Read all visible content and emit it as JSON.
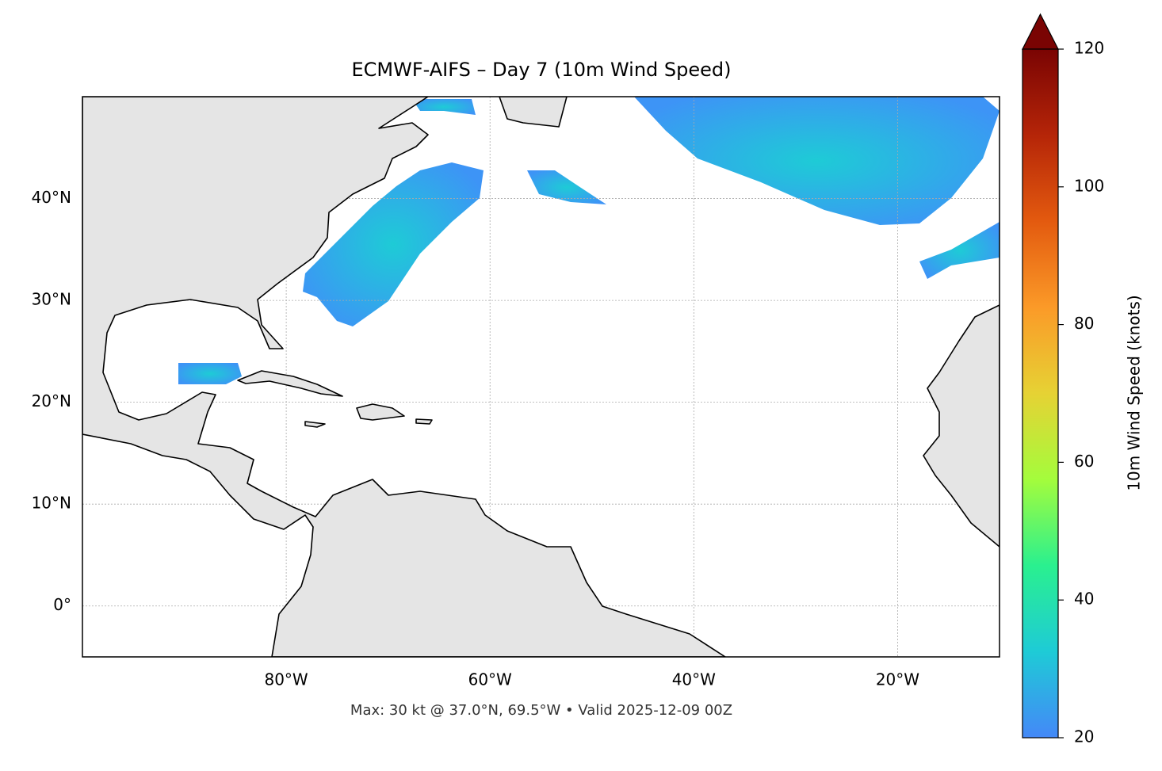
{
  "chart_data": {
    "type": "map",
    "title": "ECMWF-AIFS – Day 7 (10m Wind Speed)",
    "footnote": "Max: 30 kt @ 37.0°N, 69.5°W • Valid 2025-12-09 00Z",
    "xlim": [
      -100,
      -10
    ],
    "ylim": [
      -5,
      50
    ],
    "xticks": [
      {
        "value": -80,
        "label": "80°W"
      },
      {
        "value": -60,
        "label": "60°W"
      },
      {
        "value": -40,
        "label": "40°W"
      },
      {
        "value": -20,
        "label": "20°W"
      }
    ],
    "yticks": [
      {
        "value": 0,
        "label": "0°"
      },
      {
        "value": 10,
        "label": "10°N"
      },
      {
        "value": 20,
        "label": "20°N"
      },
      {
        "value": 30,
        "label": "30°N"
      },
      {
        "value": 40,
        "label": "40°N"
      }
    ],
    "grid": true,
    "colorbar": {
      "label": "10m Wind Speed (knots)",
      "lim": [
        20,
        120
      ],
      "ticks": [
        20,
        40,
        60,
        80,
        100,
        120
      ],
      "colors": [
        "#4488f8",
        "#1ecbd6",
        "#2af08f",
        "#a4fc3c",
        "#e6d234",
        "#fb9a28",
        "#e35a0f",
        "#b52508",
        "#7a0403"
      ]
    }
  }
}
